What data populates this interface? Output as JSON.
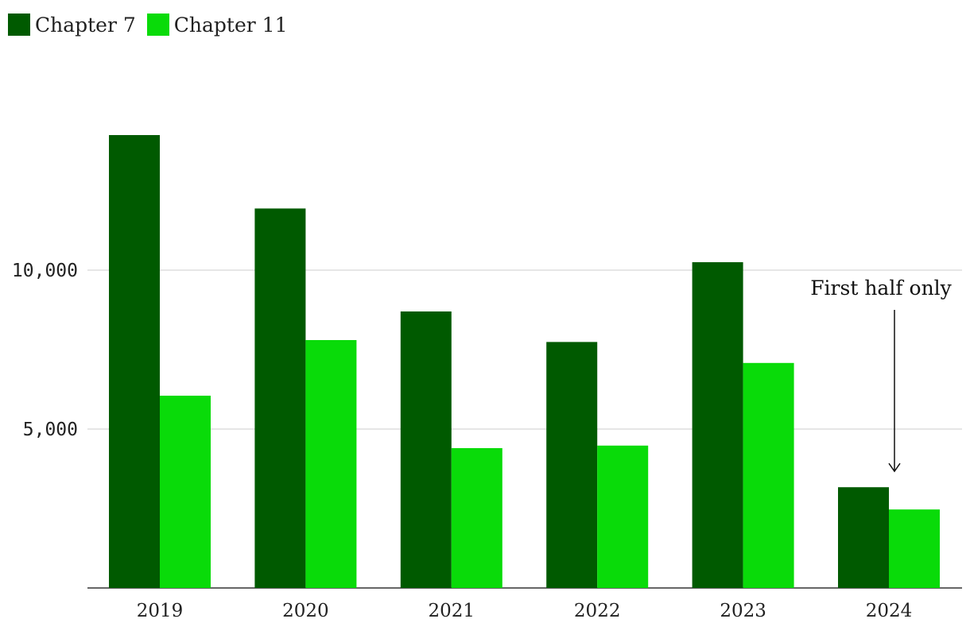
{
  "chart_data": {
    "type": "bar",
    "categories": [
      "2019",
      "2020",
      "2021",
      "2022",
      "2023",
      "2024"
    ],
    "series": [
      {
        "name": "Chapter 7",
        "color": "#005a00",
        "values": [
          14250,
          11940,
          8700,
          7740,
          10250,
          3170
        ]
      },
      {
        "name": "Chapter 11",
        "color": "#09db09",
        "values": [
          6050,
          7800,
          4400,
          4480,
          7080,
          2470
        ]
      }
    ],
    "ylim": [
      0,
      17000
    ],
    "yticks": [
      5000,
      10000
    ],
    "ytick_labels": [
      "5,000",
      "10,000"
    ],
    "grid": true,
    "legend": "top-left",
    "annotations": [
      {
        "text": "First half only",
        "category": "2024"
      }
    ]
  }
}
